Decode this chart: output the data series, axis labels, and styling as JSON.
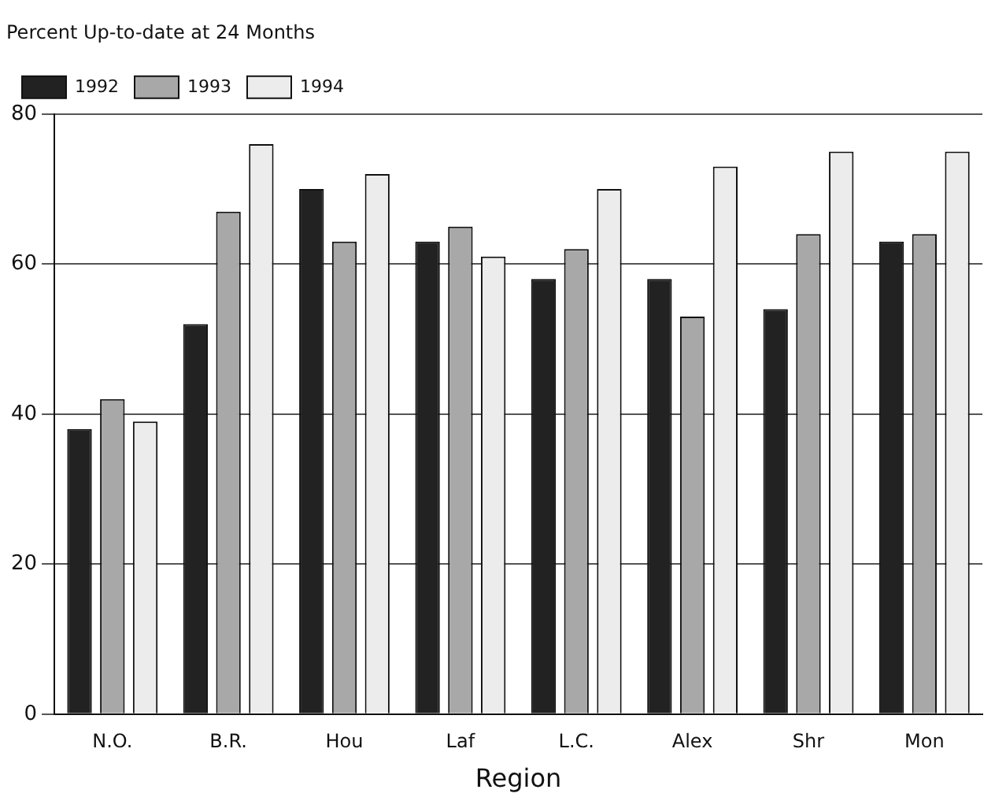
{
  "chart_data": {
    "type": "bar",
    "title": "Percent Up-to-date at 24 Months",
    "xlabel": "Region",
    "categories": [
      "N.O.",
      "B.R.",
      "Hou",
      "Laf",
      "L.C.",
      "Alex",
      "Shr",
      "Mon"
    ],
    "series": [
      {
        "name": "1992",
        "color": "#222222",
        "values": [
          38,
          52,
          70,
          63,
          58,
          58,
          54,
          63
        ]
      },
      {
        "name": "1993",
        "color": "#a8a8a8",
        "values": [
          42,
          67,
          63,
          65,
          62,
          53,
          64,
          64
        ]
      },
      {
        "name": "1994",
        "color": "#ececec",
        "values": [
          39,
          76,
          72,
          61,
          70,
          73,
          75,
          75
        ]
      }
    ],
    "ylim": [
      0,
      80
    ],
    "yticks": [
      0,
      20,
      40,
      60,
      80
    ],
    "grid": "y",
    "legend": "top left"
  }
}
